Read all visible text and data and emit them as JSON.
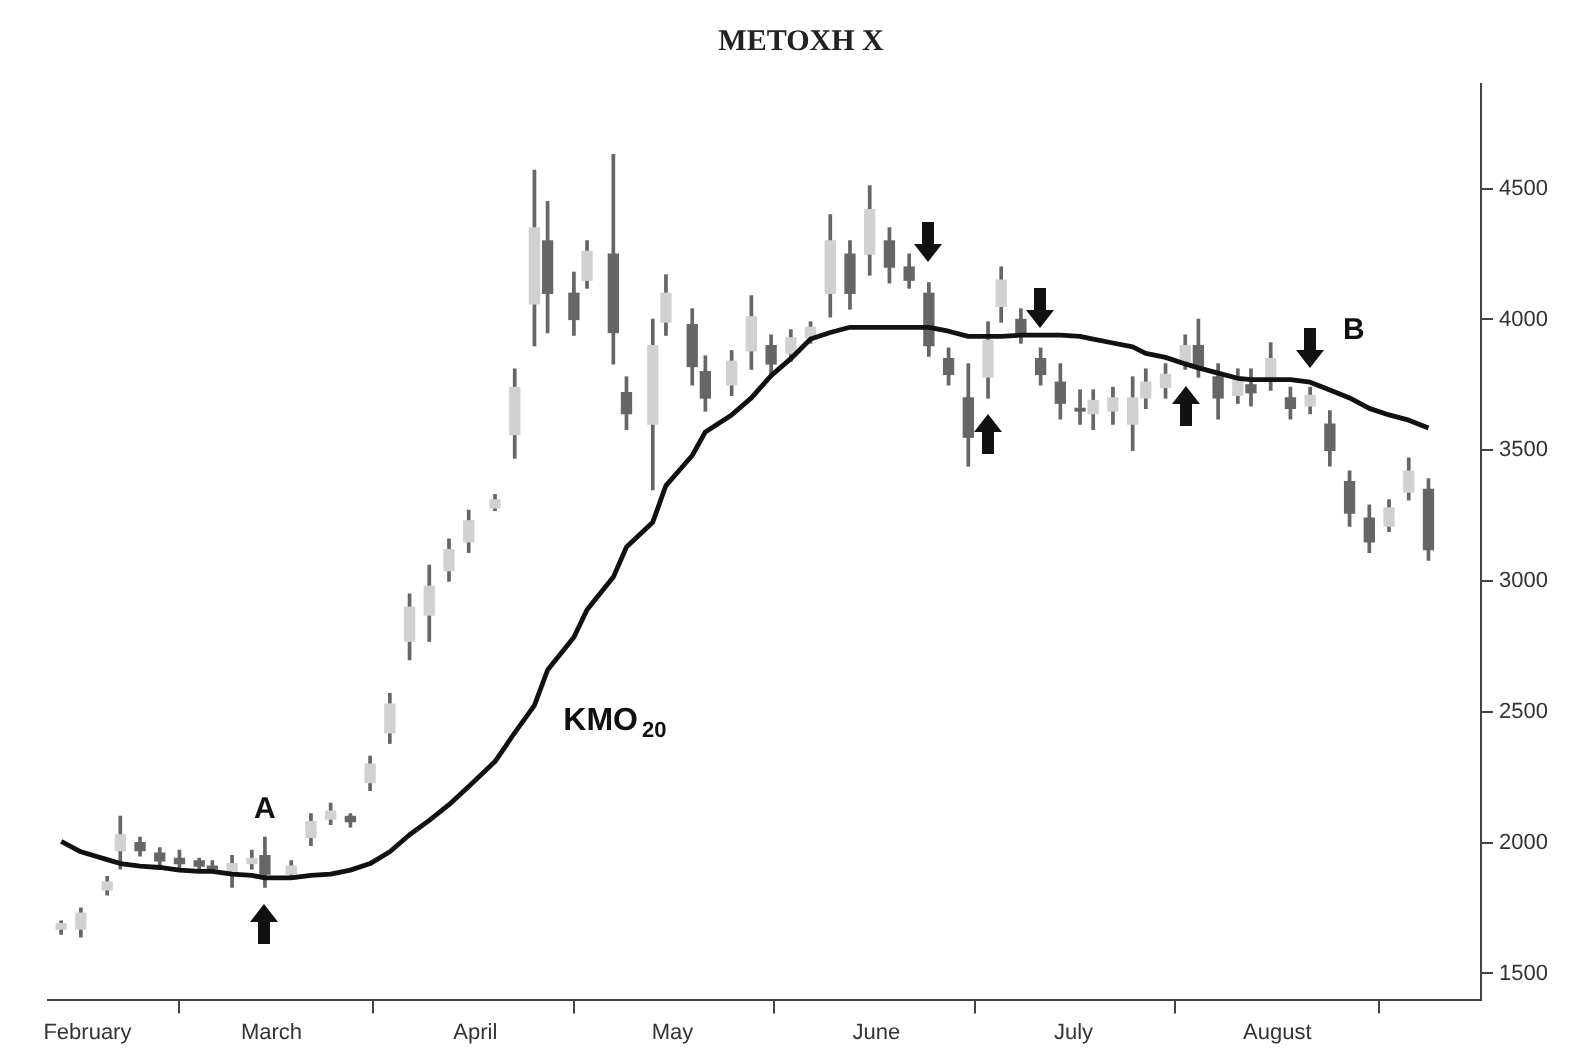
{
  "chart_data": {
    "type": "candlestick",
    "title": "ΜΕΤΟΧΗ Χ",
    "color": "#666666",
    "colors": [
      "#d1d1d1",
      "#d1d1d1",
      "#d1d1d1",
      "#d1d1d1",
      "#666666",
      "#666666",
      "#666666",
      "#666666",
      "#666666",
      "#d1d1d1",
      "#d1d1d1",
      "#666666",
      "#d1d1d1",
      "#d1d1d1",
      "#d1d1d1",
      "#666666",
      "#d1d1d1",
      "#d1d1d1",
      "#d1d1d1",
      "#d1d1d1",
      "#d1d1d1",
      "#d1d1d1",
      "#d1d1d1",
      "#d1d1d1",
      "#d1d1d1",
      "#666666",
      "#666666",
      "#d1d1d1",
      "#666666",
      "#666666",
      "#d1d1d1",
      "#d1d1d1",
      "#666666",
      "#666666",
      "#d1d1d1",
      "#d1d1d1",
      "#666666",
      "#d1d1d1",
      "#d1d1d1",
      "#d1d1d1",
      "#666666",
      "#d1d1d1",
      "#666666",
      "#666666",
      "#666666",
      "#666666",
      "#666666",
      "#d1d1d1",
      "#d1d1d1",
      "#666666",
      "#666666",
      "#666666",
      "#666666",
      "#d1d1d1",
      "#d1d1d1",
      "#d1d1d1",
      "#d1d1d1",
      "#d1d1d1",
      "#d1d1d1",
      "#666666",
      "#666666",
      "#d1d1d1",
      "#666666",
      "#d1d1d1",
      "#666666",
      "#d1d1d1",
      "#666666",
      "#666666",
      "#666666",
      "#d1d1d1",
      "#d1d1d1",
      "#666666"
    ],
    "x": [
      "--01-28",
      "--01-31",
      "--02-04",
      "--02-06",
      "--02-09",
      "--02-12",
      "--02-15",
      "--02-18",
      "--02-20",
      "--02-23",
      "--02-26",
      "--02-28",
      "--03-04",
      "--03-07",
      "--03-10",
      "--03-13",
      "--03-16",
      "--03-19",
      "--03-22",
      "--03-25",
      "--03-28",
      "--03-31",
      "--04-04",
      "--04-07",
      "--04-10",
      "--04-12",
      "--04-16",
      "--04-18",
      "--04-22",
      "--04-24",
      "--04-28",
      "--04-30",
      "--05-04",
      "--05-06",
      "--05-10",
      "--05-13",
      "--05-16",
      "--05-19",
      "--05-22",
      "--05-25",
      "--05-28",
      "--05-31",
      "--06-03",
      "--06-06",
      "--06-09",
      "--06-12",
      "--06-15",
      "--06-18",
      "--06-20",
      "--06-23",
      "--06-26",
      "--06-29",
      "--07-02",
      "--07-04",
      "--07-07",
      "--07-10",
      "--07-12",
      "--07-15",
      "--07-18",
      "--07-20",
      "--07-23",
      "--07-26",
      "--07-28",
      "--07-31",
      "--08-03",
      "--08-06",
      "--08-09",
      "--08-12",
      "--08-15",
      "--08-18",
      "--08-21",
      "--08-24"
    ],
    "ohlc": [
      [
        1670,
        1700,
        1650,
        1690
      ],
      [
        1670,
        1750,
        1640,
        1730
      ],
      [
        1820,
        1870,
        1800,
        1850
      ],
      [
        1970,
        2100,
        1900,
        2030
      ],
      [
        2000,
        2020,
        1950,
        1970
      ],
      [
        1960,
        1980,
        1910,
        1930
      ],
      [
        1940,
        1970,
        1900,
        1920
      ],
      [
        1930,
        1940,
        1900,
        1910
      ],
      [
        1910,
        1930,
        1890,
        1900
      ],
      [
        1890,
        1950,
        1830,
        1920
      ],
      [
        1920,
        1970,
        1900,
        1940
      ],
      [
        1950,
        2020,
        1830,
        1880
      ],
      [
        1880,
        1930,
        1870,
        1910
      ],
      [
        2020,
        2110,
        1990,
        2080
      ],
      [
        2090,
        2150,
        2070,
        2120
      ],
      [
        2100,
        2110,
        2060,
        2080
      ],
      [
        2230,
        2330,
        2200,
        2300
      ],
      [
        2420,
        2570,
        2380,
        2530
      ],
      [
        2770,
        2950,
        2700,
        2900
      ],
      [
        2870,
        3060,
        2770,
        2980
      ],
      [
        3040,
        3160,
        3000,
        3120
      ],
      [
        3150,
        3270,
        3110,
        3230
      ],
      [
        3280,
        3330,
        3270,
        3310
      ],
      [
        3560,
        3810,
        3470,
        3740
      ],
      [
        4060,
        4570,
        3900,
        4350
      ],
      [
        4300,
        4450,
        3950,
        4100
      ],
      [
        4100,
        4180,
        3940,
        4000
      ],
      [
        4150,
        4300,
        4120,
        4260
      ],
      [
        4250,
        4630,
        3830,
        3950
      ],
      [
        3720,
        3780,
        3580,
        3640
      ],
      [
        3600,
        4000,
        3350,
        3900
      ],
      [
        3990,
        4170,
        3940,
        4100
      ],
      [
        3980,
        4040,
        3750,
        3820
      ],
      [
        3800,
        3860,
        3650,
        3700
      ],
      [
        3750,
        3880,
        3710,
        3840
      ],
      [
        3880,
        4090,
        3810,
        4010
      ],
      [
        3900,
        3940,
        3780,
        3830
      ],
      [
        3870,
        3960,
        3840,
        3930
      ],
      [
        3930,
        3990,
        3910,
        3970
      ],
      [
        4100,
        4400,
        4010,
        4300
      ],
      [
        4250,
        4300,
        4040,
        4100
      ],
      [
        4250,
        4510,
        4170,
        4420
      ],
      [
        4300,
        4350,
        4140,
        4200
      ],
      [
        4200,
        4250,
        4120,
        4150
      ],
      [
        4100,
        4140,
        3860,
        3900
      ],
      [
        3850,
        3890,
        3750,
        3790
      ],
      [
        3700,
        3830,
        3440,
        3550
      ],
      [
        3780,
        3990,
        3700,
        3920
      ],
      [
        4050,
        4200,
        3990,
        4150
      ],
      [
        4000,
        4040,
        3910,
        3950
      ],
      [
        3850,
        3890,
        3750,
        3790
      ],
      [
        3760,
        3830,
        3620,
        3680
      ],
      [
        3660,
        3730,
        3600,
        3650
      ],
      [
        3640,
        3730,
        3580,
        3690
      ],
      [
        3650,
        3740,
        3600,
        3700
      ],
      [
        3600,
        3780,
        3500,
        3700
      ],
      [
        3700,
        3810,
        3660,
        3760
      ],
      [
        3740,
        3830,
        3700,
        3790
      ],
      [
        3840,
        3940,
        3810,
        3900
      ],
      [
        3900,
        4000,
        3780,
        3820
      ],
      [
        3780,
        3830,
        3620,
        3700
      ],
      [
        3710,
        3810,
        3680,
        3770
      ],
      [
        3750,
        3810,
        3670,
        3720
      ],
      [
        3780,
        3910,
        3730,
        3850
      ],
      [
        3700,
        3740,
        3620,
        3660
      ],
      [
        3670,
        3740,
        3640,
        3710
      ],
      [
        3600,
        3650,
        3440,
        3500
      ],
      [
        3380,
        3420,
        3210,
        3260
      ],
      [
        3240,
        3290,
        3110,
        3150
      ],
      [
        3210,
        3310,
        3190,
        3280
      ],
      [
        3340,
        3470,
        3310,
        3420
      ],
      [
        3350,
        3390,
        3080,
        3120
      ]
    ],
    "series": [
      {
        "type": "line",
        "name": "ΚΜΟ$_{20}$",
        "color": "#111111",
        "values": [
          2005,
          1965,
          1935,
          1920,
          1910,
          1905,
          1895,
          1890,
          1890,
          1880,
          1875,
          1865,
          1865,
          1875,
          1880,
          1895,
          1920,
          1965,
          2030,
          2085,
          2145,
          2215,
          2310,
          2420,
          2525,
          2660,
          2785,
          2890,
          3015,
          3130,
          3225,
          3365,
          3480,
          3570,
          3635,
          3700,
          3785,
          3850,
          3925,
          3950,
          3970,
          3970,
          3970,
          3970,
          3970,
          3955,
          3935,
          3935,
          3935,
          3940,
          3940,
          3940,
          3935,
          3925,
          3910,
          3895,
          3870,
          3855,
          3830,
          3815,
          3795,
          3775,
          3770,
          3770,
          3770,
          3760,
          3730,
          3700,
          3660,
          3635,
          3615,
          3585
        ]
      }
    ],
    "xlim": [
      "--01-26",
      "--09-01"
    ],
    "xticks": [
      {
        "value": "--02-01",
        "label": "February"
      },
      {
        "value": "--03-01",
        "label": "March"
      },
      {
        "value": "--04-01",
        "label": "April"
      },
      {
        "value": "--05-01",
        "label": "May"
      },
      {
        "value": "--06-01",
        "label": "June"
      },
      {
        "value": "--07-01",
        "label": "July"
      },
      {
        "value": "--08-01",
        "label": "August"
      },
      {
        "value": "--09-01",
        "label": null
      }
    ],
    "ylim": [
      1400,
      4900
    ],
    "yticks": [
      1500,
      2000,
      2500,
      3000,
      3500,
      4000,
      4500
    ],
    "annotations": [
      "A",
      "B"
    ]
  }
}
